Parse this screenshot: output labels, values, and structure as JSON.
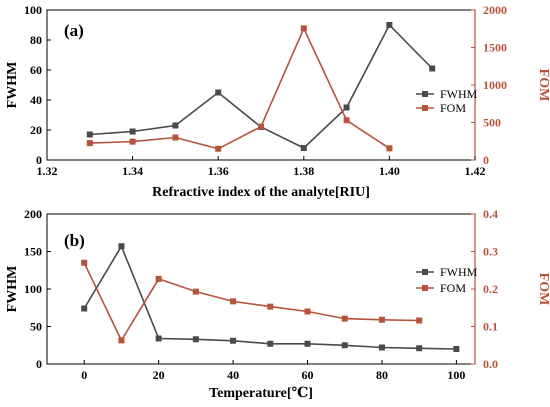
{
  "colors": {
    "fwhm": "#4a4a4a",
    "fom": "#b5533b",
    "axis": "#000000"
  },
  "chart_data": [
    {
      "type": "line",
      "panel_label": "(a)",
      "xlabel": "Refractive index of the analyte[RIU]",
      "ylabel": "FWHM",
      "y2label": "FOM",
      "xlim": [
        1.32,
        1.42
      ],
      "ylim": [
        0,
        100
      ],
      "y2lim": [
        0,
        2000
      ],
      "xticks": [
        "1.32",
        "1.34",
        "1.36",
        "1.38",
        "1.40",
        "1.42"
      ],
      "xtick_values": [
        1.32,
        1.34,
        1.36,
        1.38,
        1.4,
        1.42
      ],
      "yticks": [
        "0",
        "20",
        "40",
        "60",
        "80",
        "100"
      ],
      "ytick_values": [
        0,
        20,
        40,
        60,
        80,
        100
      ],
      "y2ticks": [
        "0",
        "500",
        "1000",
        "1500",
        "2000"
      ],
      "y2tick_values": [
        0,
        500,
        1000,
        1500,
        2000
      ],
      "legend": "right",
      "series": [
        {
          "name": "FWHM",
          "axis": "left",
          "marker": "square",
          "x": [
            1.33,
            1.34,
            1.35,
            1.36,
            1.37,
            1.38,
            1.39,
            1.4,
            1.41
          ],
          "values": [
            17,
            19,
            23,
            45,
            22,
            8,
            35,
            90,
            61
          ]
        },
        {
          "name": "FOM",
          "axis": "right",
          "marker": "square",
          "x": [
            1.33,
            1.34,
            1.35,
            1.36,
            1.37,
            1.38,
            1.39,
            1.4
          ],
          "values": [
            225,
            245,
            300,
            150,
            445,
            1755,
            530,
            155
          ]
        }
      ]
    },
    {
      "type": "line",
      "panel_label": "(b)",
      "xlabel": "Temperature[℃]",
      "ylabel": "FWHM",
      "y2label": "FOM",
      "xlim": [
        -10,
        105
      ],
      "ylim": [
        0,
        200
      ],
      "y2lim": [
        0,
        0.4
      ],
      "xticks": [
        "0",
        "20",
        "40",
        "60",
        "80",
        "100"
      ],
      "xtick_values": [
        0,
        20,
        40,
        60,
        80,
        100
      ],
      "yticks": [
        "0",
        "50",
        "100",
        "150",
        "200"
      ],
      "ytick_values": [
        0,
        50,
        100,
        150,
        200
      ],
      "y2ticks": [
        "0.0",
        "0.1",
        "0.2",
        "0.3",
        "0.4"
      ],
      "y2tick_values": [
        0,
        0.1,
        0.2,
        0.3,
        0.4
      ],
      "legend": "right",
      "series": [
        {
          "name": "FWHM",
          "axis": "left",
          "marker": "square",
          "x": [
            0,
            10,
            20,
            30,
            40,
            50,
            60,
            70,
            80,
            90,
            100
          ],
          "values": [
            74,
            157,
            34,
            33,
            31,
            27,
            27,
            25,
            22,
            21,
            20
          ]
        },
        {
          "name": "FOM",
          "axis": "right",
          "marker": "square",
          "x": [
            0,
            10,
            20,
            30,
            40,
            50,
            60,
            70,
            80,
            90
          ],
          "values": [
            0.27,
            0.063,
            0.227,
            0.193,
            0.167,
            0.153,
            0.14,
            0.121,
            0.118,
            0.116
          ]
        }
      ]
    }
  ]
}
